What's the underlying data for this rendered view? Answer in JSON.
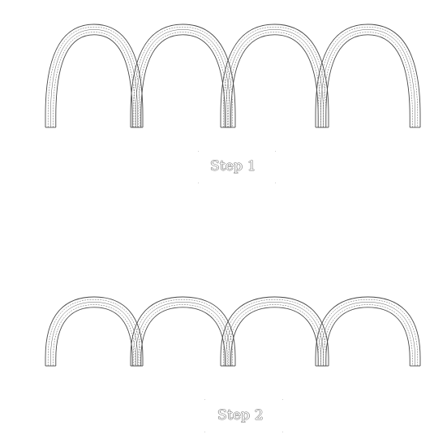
{
  "steps": [
    {
      "label": "Step 1",
      "arch_count": 4,
      "arch_profile": "tall"
    },
    {
      "label": "Step 2",
      "arch_count": 4,
      "arch_profile": "short"
    }
  ],
  "colors": {
    "background": "#ffffff",
    "line": "#4a4a4a",
    "label_outline": "#6b6b6b"
  }
}
